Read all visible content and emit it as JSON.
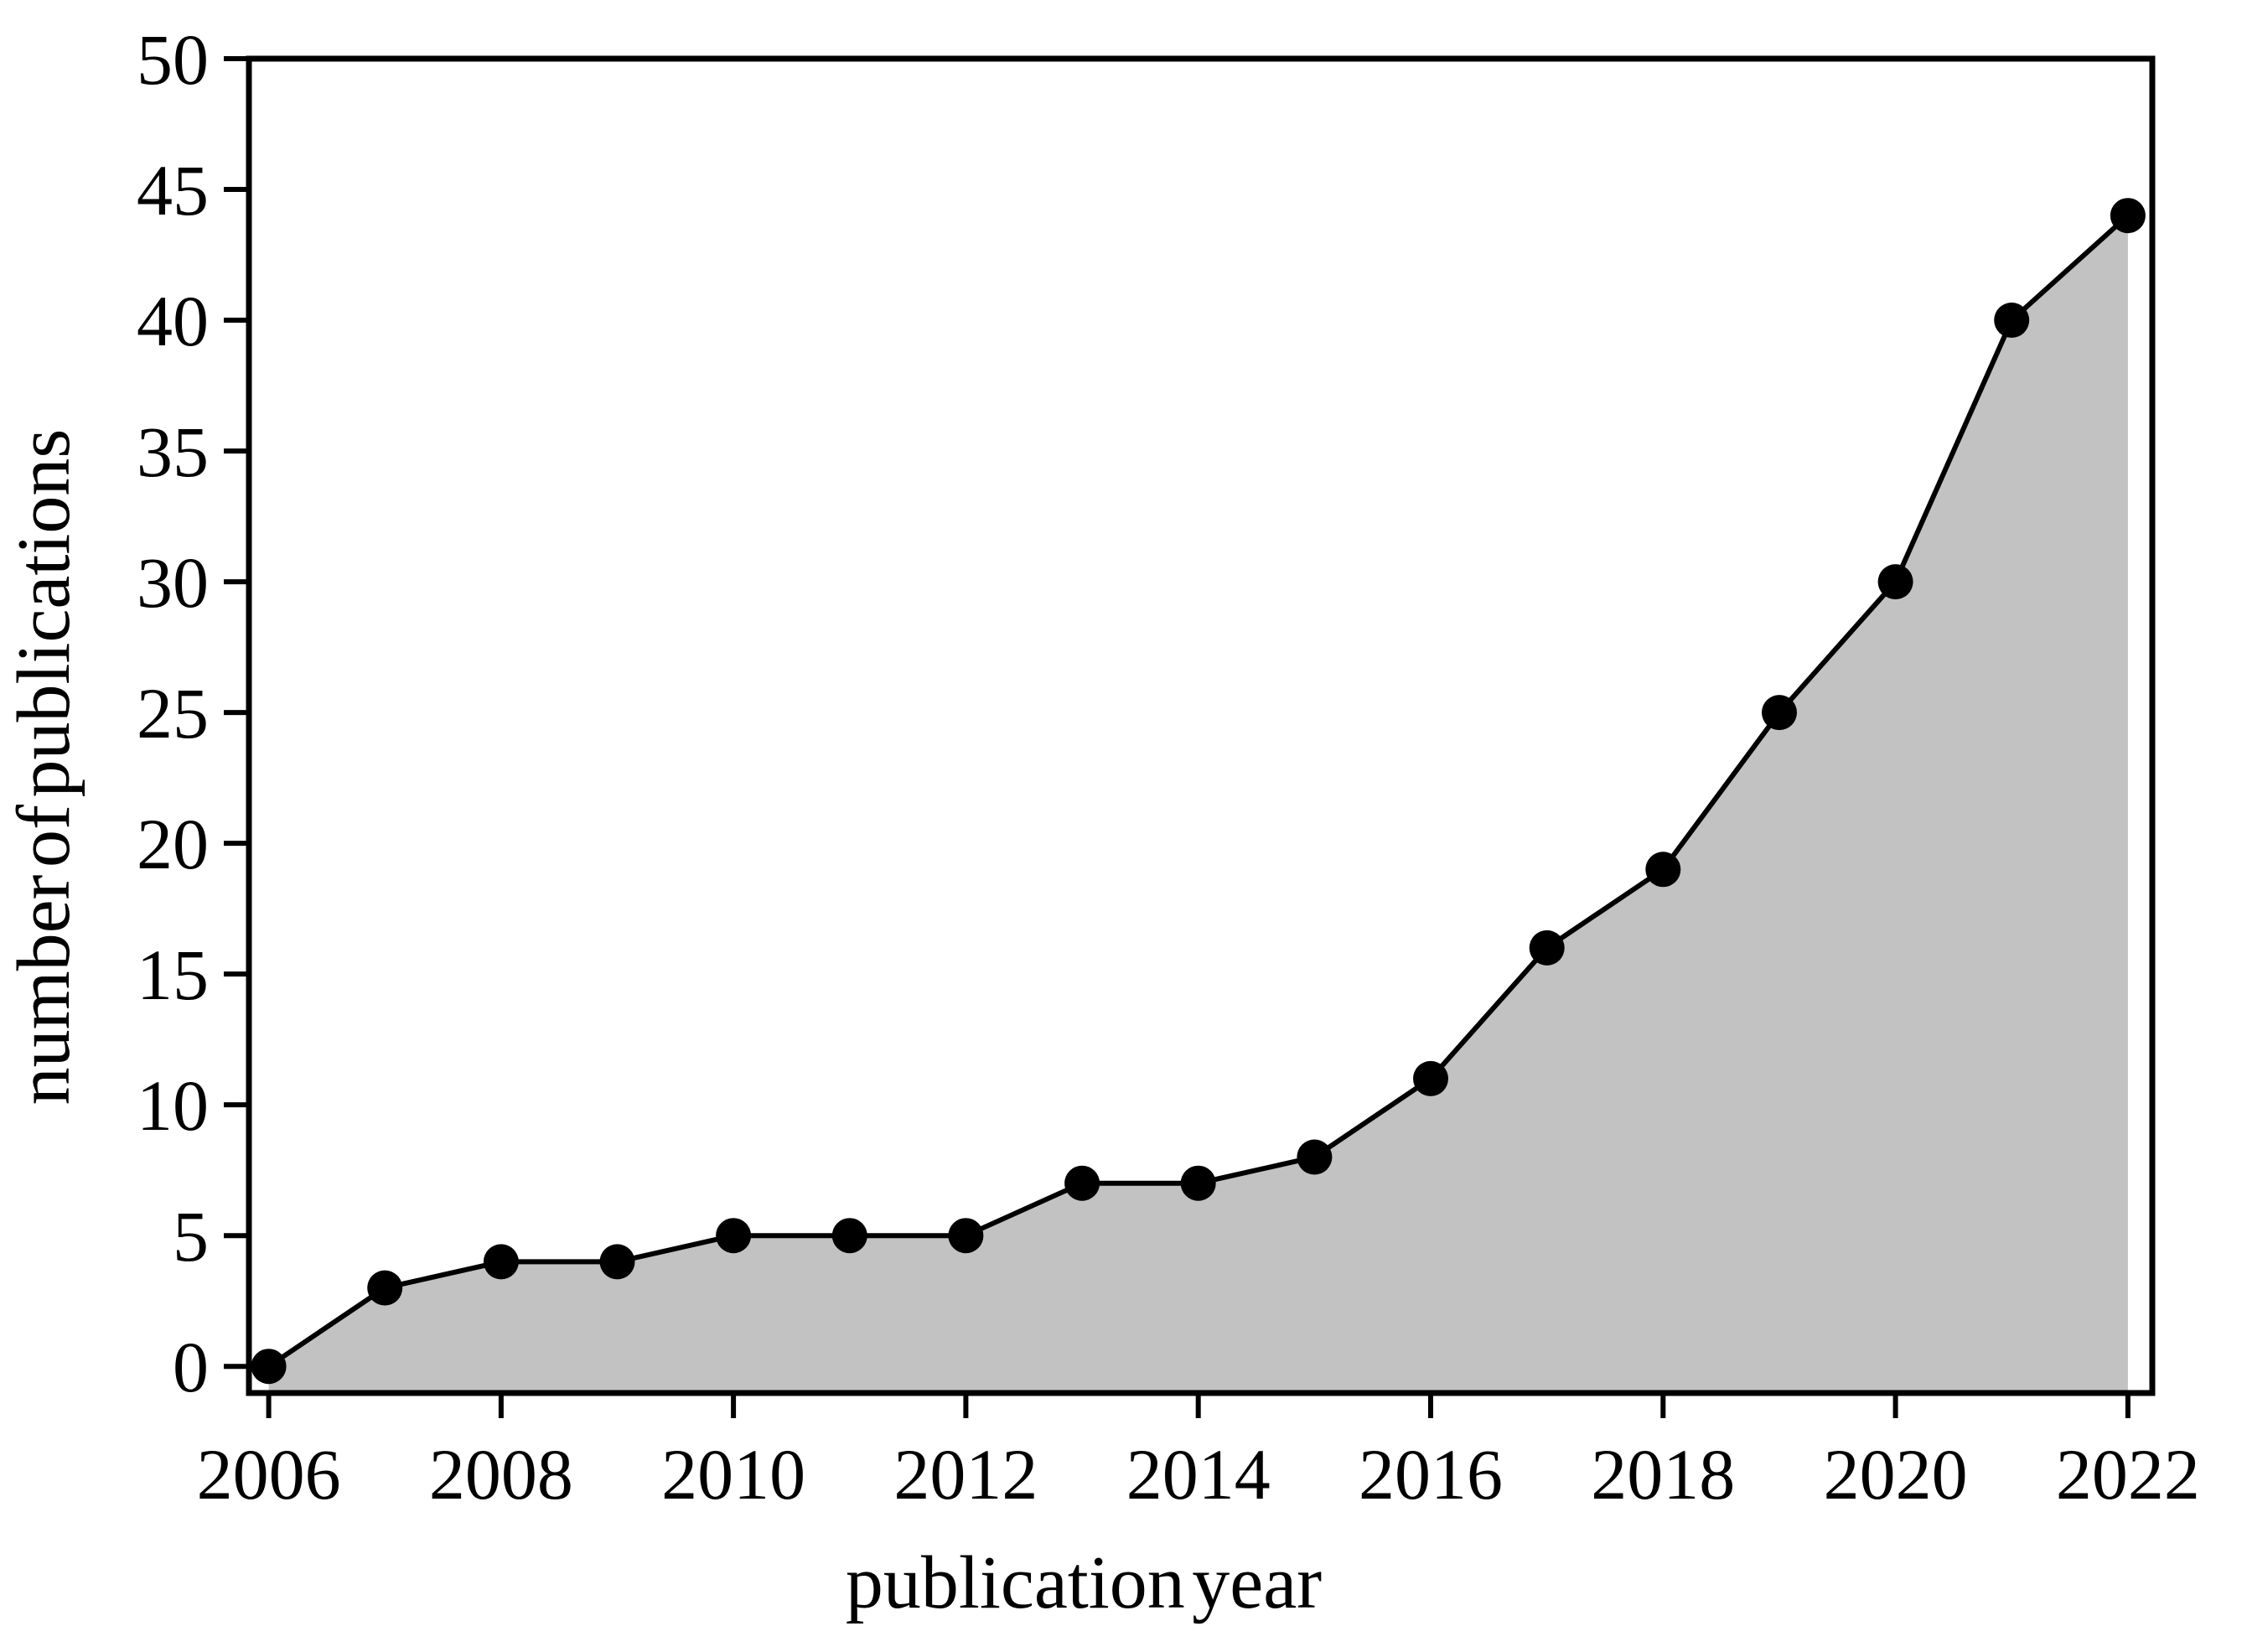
{
  "page": {
    "background_color": "#ffffff"
  },
  "chart_data": {
    "type": "area",
    "title": "",
    "xlabel": "publication year",
    "ylabel": "number of publications",
    "x": [
      2006,
      2007,
      2008,
      2009,
      2010,
      2011,
      2012,
      2013,
      2014,
      2015,
      2016,
      2017,
      2018,
      2019,
      2020,
      2021,
      2022
    ],
    "values": [
      0,
      3,
      4,
      4,
      5,
      5,
      5,
      7,
      7,
      8,
      11,
      16,
      19,
      25,
      30,
      40,
      44
    ],
    "x_ticks": [
      2006,
      2008,
      2010,
      2012,
      2014,
      2016,
      2018,
      2020,
      2022
    ],
    "x_tick_labels": [
      "2006",
      "2008",
      "2010",
      "2012",
      "2014",
      "2016",
      "2018",
      "2020",
      "2022"
    ],
    "y_ticks": [
      0,
      5,
      10,
      15,
      20,
      25,
      30,
      35,
      40,
      45,
      50
    ],
    "y_tick_labels": [
      "0",
      "5",
      "10",
      "15",
      "20",
      "25",
      "30",
      "35",
      "40",
      "45",
      "50"
    ],
    "xlim": [
      2005.83,
      2022.21
    ],
    "ylim": [
      -1.02,
      50
    ],
    "grid": false,
    "legend_position": "none",
    "marker": "filled-circle",
    "line_color": "#000000",
    "marker_color": "#000000",
    "fill_color": "#c2c2c2",
    "axis_color": "#000000",
    "text_color": "#000000",
    "background_color": "#ffffff"
  }
}
